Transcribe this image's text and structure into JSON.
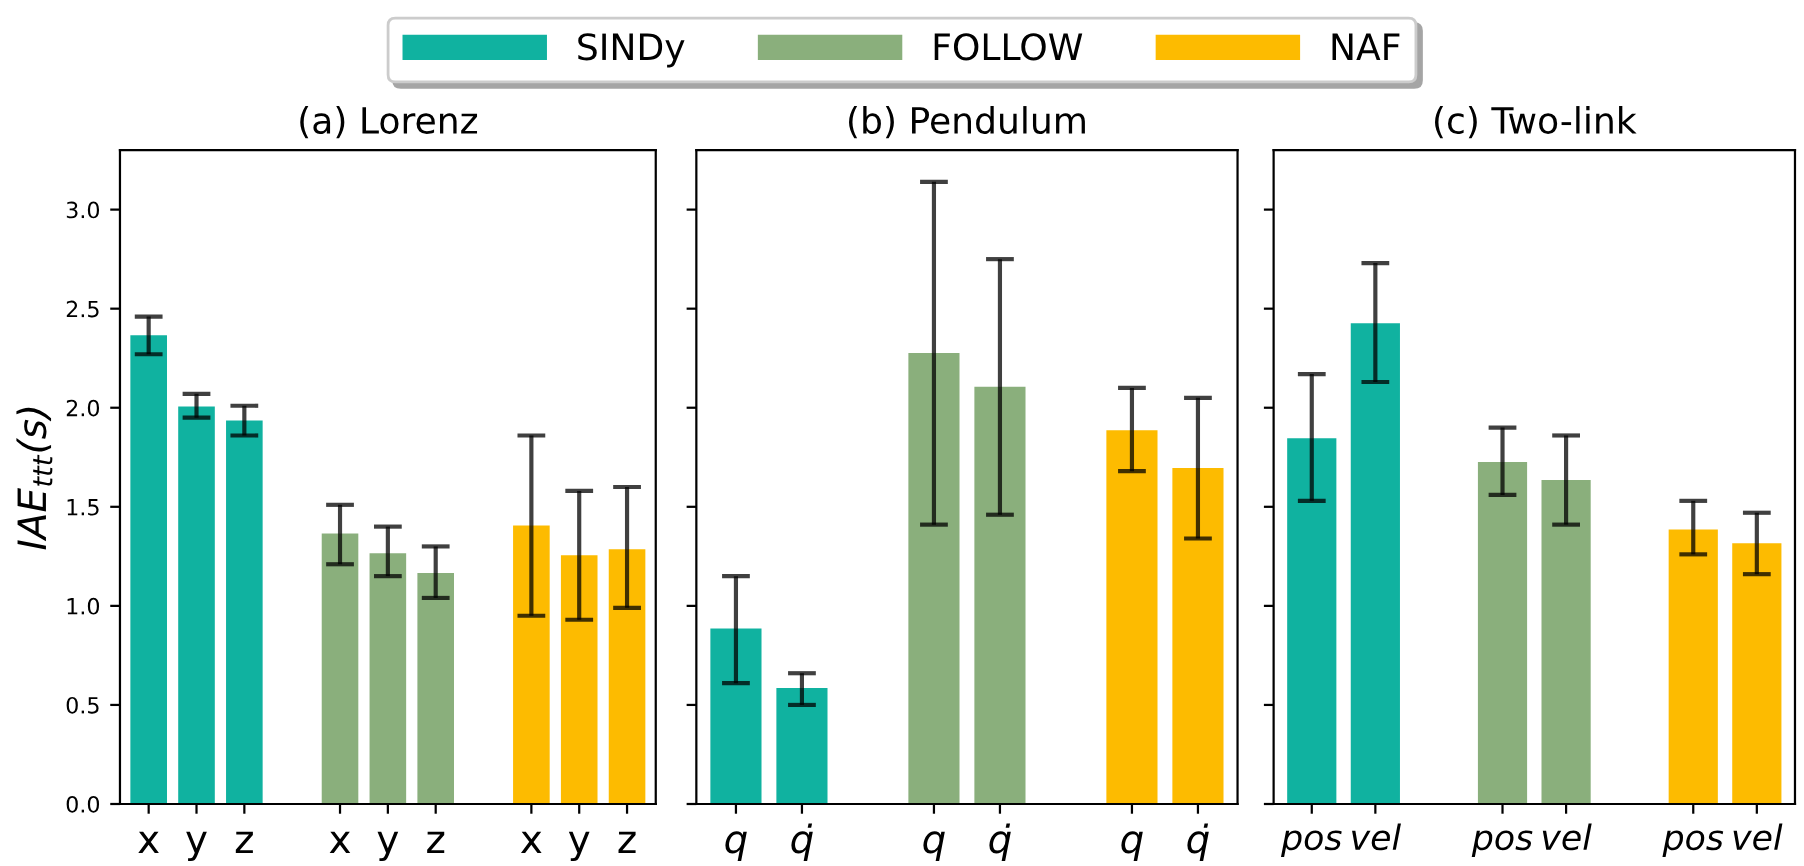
{
  "chart_data": [
    {
      "type": "bar",
      "title": "(a) Lorenz",
      "ylabel": "IAE$_{ttt}$(s)",
      "legend": "top",
      "grid": false,
      "ylim": [
        0,
        3.3
      ],
      "yticks": [
        {
          "value": 0,
          "label": "0.0"
        },
        0.5,
        {
          "value": 1,
          "label": "1.0"
        },
        1.5,
        {
          "value": 2,
          "label": "2.0"
        },
        2.5,
        {
          "value": 3,
          "label": "3.0"
        }
      ],
      "categories": [
        "x",
        "y",
        "z",
        null,
        "x",
        "y",
        "z",
        null,
        "x",
        "y",
        "z"
      ],
      "series": [
        {
          "name": "SINDy",
          "color": "#10b2a0",
          "values": [
            2.37,
            2.01,
            1.94,
            null,
            null,
            null,
            null,
            null,
            null,
            null,
            null
          ],
          "errors": [
            [
              2.27,
              2.46
            ],
            [
              1.95,
              2.07
            ],
            [
              1.86,
              2.01
            ],
            null,
            null,
            null,
            null,
            null,
            null,
            null,
            null
          ]
        },
        {
          "name": "FOLLOW",
          "color": "#8aaf7c",
          "values": [
            null,
            null,
            null,
            null,
            1.37,
            1.27,
            1.17,
            null,
            null,
            null,
            null
          ],
          "errors": [
            null,
            null,
            null,
            null,
            [
              1.21,
              1.51
            ],
            [
              1.15,
              1.4
            ],
            [
              1.04,
              1.3
            ],
            null,
            null,
            null,
            null
          ]
        },
        {
          "name": "NAF",
          "color": "#fdbb00",
          "values": [
            null,
            null,
            null,
            null,
            null,
            null,
            null,
            null,
            1.41,
            1.26,
            1.29
          ],
          "errors": [
            null,
            null,
            null,
            null,
            null,
            null,
            null,
            null,
            [
              0.95,
              1.86
            ],
            [
              0.93,
              1.58
            ],
            [
              0.99,
              1.6
            ]
          ]
        }
      ]
    },
    {
      "type": "bar",
      "title": "(b) Pendulum",
      "tick_labels": "x",
      "grid": false,
      "ylim": [
        0,
        3.3
      ],
      "yticks": [
        0,
        0.5,
        1,
        1.5,
        2,
        2.5,
        3
      ],
      "categories": [
        "q",
        "q̇",
        null,
        "q",
        "q̇",
        null,
        "q",
        "q̇"
      ],
      "series": [
        {
          "color": "#10b2a0",
          "values": [
            0.89,
            0.59,
            null,
            null,
            null,
            null,
            null,
            null
          ],
          "errors": [
            [
              0.61,
              1.15
            ],
            [
              0.5,
              0.66
            ],
            null,
            null,
            null,
            null,
            null,
            null
          ]
        },
        {
          "color": "#8aaf7c",
          "values": [
            null,
            null,
            null,
            2.28,
            2.11,
            null,
            null,
            null
          ],
          "errors": [
            null,
            null,
            null,
            [
              1.41,
              3.14
            ],
            [
              1.46,
              2.75
            ],
            null,
            null,
            null
          ]
        },
        {
          "color": "#fdbb00",
          "values": [
            null,
            null,
            null,
            null,
            null,
            null,
            1.89,
            1.7
          ],
          "errors": [
            null,
            null,
            null,
            null,
            null,
            null,
            [
              1.68,
              2.1
            ],
            [
              1.34,
              2.05
            ]
          ]
        }
      ]
    },
    {
      "type": "bar",
      "title": "(c) Two-link",
      "tick_labels": "x",
      "grid": false,
      "ylim": [
        0,
        3.3
      ],
      "yticks": [
        0,
        0.5,
        1,
        1.5,
        2,
        2.5,
        3
      ],
      "categories": [
        "pos",
        "vel",
        null,
        "pos",
        "vel",
        null,
        "pos",
        "vel"
      ],
      "series": [
        {
          "color": "#10b2a0",
          "values": [
            1.85,
            2.43,
            null,
            null,
            null,
            null,
            null,
            null
          ],
          "errors": [
            [
              1.53,
              2.17
            ],
            [
              2.13,
              2.73
            ],
            null,
            null,
            null,
            null,
            null,
            null
          ]
        },
        {
          "color": "#8aaf7c",
          "values": [
            null,
            null,
            null,
            1.73,
            1.64,
            null,
            null,
            null
          ],
          "errors": [
            null,
            null,
            null,
            [
              1.56,
              1.9
            ],
            [
              1.41,
              1.86
            ],
            null,
            null,
            null
          ]
        },
        {
          "color": "#fdbb00",
          "values": [
            null,
            null,
            null,
            null,
            null,
            null,
            1.39,
            1.32
          ],
          "errors": [
            null,
            null,
            null,
            null,
            null,
            null,
            [
              1.26,
              1.53
            ],
            [
              1.16,
              1.47
            ]
          ]
        }
      ]
    }
  ]
}
